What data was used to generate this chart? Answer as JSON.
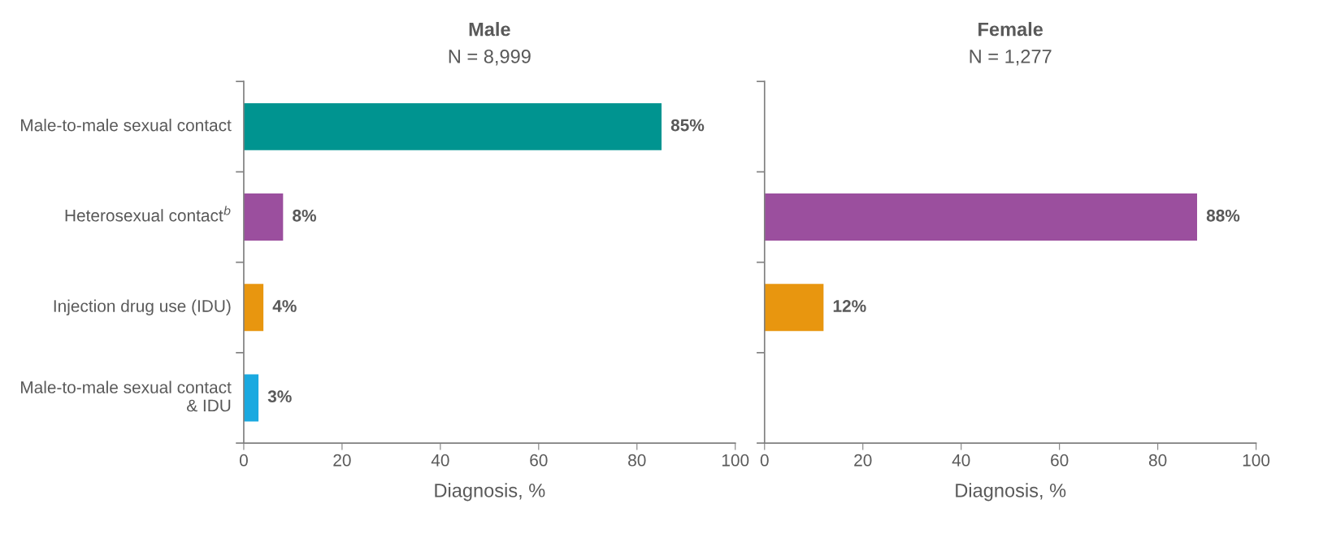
{
  "chart_data": [
    {
      "type": "bar",
      "orientation": "horizontal",
      "title": "Male",
      "subtitle": "N = 8,999",
      "xlabel": "Diagnosis, %",
      "categories": [
        "Male-to-male sexual contact",
        "Heterosexual contact$^{b}$",
        "Injection drug use (IDU)",
        "Male-to-male sexual contact & IDU"
      ],
      "values": [
        85,
        8,
        4,
        3
      ],
      "colors": [
        "#009490",
        "#9b4f9e",
        "#e8960f",
        "#1aa9e0"
      ],
      "value_labels": [
        "85%",
        "8%",
        "4%",
        "3%"
      ],
      "xlim": [
        0,
        100
      ],
      "xticks": [
        0,
        20,
        40,
        60,
        80,
        100
      ],
      "grid": false,
      "legend": false
    },
    {
      "type": "bar",
      "orientation": "horizontal",
      "title": "Female",
      "subtitle": "N = 1,277",
      "xlabel": "Diagnosis, %",
      "categories": [
        null,
        null,
        null,
        null
      ],
      "values": [
        null,
        88,
        12,
        null
      ],
      "colors": [
        "#009490",
        "#9b4f9e",
        "#e8960f",
        "#1aa9e0"
      ],
      "value_labels": [
        null,
        "88%",
        "12%",
        null
      ],
      "xlim": [
        0,
        100
      ],
      "xticks": [
        0,
        20,
        40,
        60,
        80,
        100
      ],
      "tick_labels": "x",
      "grid": false,
      "legend": false
    }
  ]
}
